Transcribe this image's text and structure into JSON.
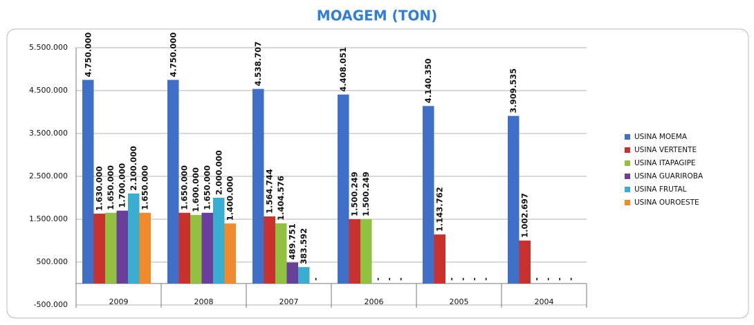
{
  "chart_data": {
    "type": "bar",
    "title": "MOAGEM (TON)",
    "categories": [
      "2009",
      "2008",
      "2007",
      "2006",
      "2005",
      "2004"
    ],
    "series": [
      {
        "name": "USINA MOEMA",
        "color": "#3f6fc6",
        "values": [
          4750000,
          4750000,
          4538707,
          4408051,
          4140350,
          3909535
        ],
        "value_labels": [
          "4.750.000",
          "4.750.000",
          "4.538.707",
          "4.408.051",
          "4.140.350",
          "3.909.535"
        ]
      },
      {
        "name": "USINA VERTENTE",
        "color": "#c8312e",
        "values": [
          1630000,
          1650000,
          1564744,
          1500249,
          1143762,
          1002697
        ],
        "value_labels": [
          "1.630.000",
          "1.650.000",
          "1.564.744",
          "1.500.249",
          "1.143.762",
          "1.002.697"
        ]
      },
      {
        "name": "USINA ITAPAGIPE",
        "color": "#92c041",
        "values": [
          1650000,
          1600000,
          1404576,
          1500249,
          0,
          0
        ],
        "value_labels": [
          "1.650.000",
          "1.600.000",
          "1.404.576",
          "1.500.249",
          "-",
          "-"
        ]
      },
      {
        "name": "USINA GUARIROBA",
        "color": "#6a3f9a",
        "values": [
          1700000,
          1650000,
          489751,
          0,
          0,
          0
        ],
        "value_labels": [
          "1.700.000",
          "1.650.000",
          "489.751",
          "-",
          "-",
          "-"
        ]
      },
      {
        "name": "USINA FRUTAL",
        "color": "#3aaed0",
        "values": [
          2100000,
          2000000,
          383592,
          0,
          0,
          0
        ],
        "value_labels": [
          "2.100.000",
          "2.000.000",
          "383.592",
          "-",
          "-",
          "-"
        ]
      },
      {
        "name": "USINA OUROESTE",
        "color": "#f08a2a",
        "values": [
          1650000,
          1400000,
          0,
          0,
          0,
          0
        ],
        "value_labels": [
          "1.650.000",
          "1.400.000",
          "-",
          "-",
          "-",
          "-"
        ]
      }
    ],
    "ylim": [
      -500000,
      5500000
    ],
    "yticks": [
      {
        "value": -500000,
        "label": "-500.000"
      },
      {
        "value": 500000,
        "label": "500.000"
      },
      {
        "value": 1500000,
        "label": "1.500.000"
      },
      {
        "value": 2500000,
        "label": "2.500.000"
      },
      {
        "value": 3500000,
        "label": "3.500.000"
      },
      {
        "value": 4500000,
        "label": "4.500.000"
      },
      {
        "value": 5500000,
        "label": "5.500.000"
      }
    ],
    "grid": true,
    "legend": "right"
  }
}
